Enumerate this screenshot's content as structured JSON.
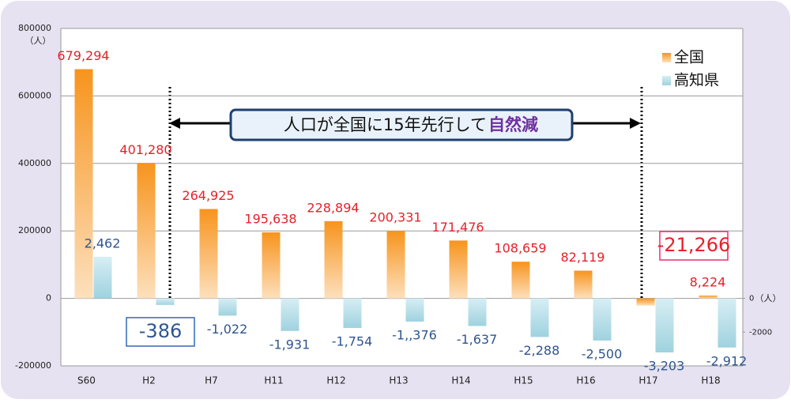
{
  "chart_data": {
    "type": "bar",
    "categories": [
      "S60",
      "H2",
      "H7",
      "H11",
      "H12",
      "H13",
      "H14",
      "H15",
      "H16",
      "H17",
      "H18"
    ],
    "series": [
      {
        "name": "全国",
        "color": "#f7941d",
        "values": [
          679294,
          401280,
          264925,
          195638,
          228894,
          200331,
          171476,
          108659,
          82119,
          -21266,
          8224
        ],
        "value_labels": [
          "679,294",
          "401,280",
          "264,925",
          "195,638",
          "228,894",
          "200,331",
          "171,476",
          "108,659",
          "82,119",
          "-21,266",
          "8,224"
        ]
      },
      {
        "name": "高知県",
        "color": "#9fd2df",
        "axis": "y2",
        "values": [
          2462,
          -386,
          -1022,
          -1931,
          -1754,
          -1376,
          -1637,
          -2288,
          -2500,
          -3203,
          -2912
        ],
        "value_labels": [
          "2,462",
          "-386",
          "-1,022",
          "-1,931",
          "-1,754",
          "-1,,376",
          "-1,637",
          "-2,288",
          "-2,500",
          "-3,203",
          "-2,912"
        ]
      }
    ],
    "ylim": [
      -200000,
      800000
    ],
    "yticks": [
      -200000,
      0,
      200000,
      400000,
      600000,
      800000
    ],
    "y_unit": "（人）",
    "y2lim": [
      -4000,
      16000
    ],
    "y2ticks": [
      -2000,
      0
    ],
    "y2_unit": "（人）",
    "annotation": [
      "人口が全国に15年先行して",
      "自然減"
    ],
    "legend": "upper right",
    "grid": true
  }
}
